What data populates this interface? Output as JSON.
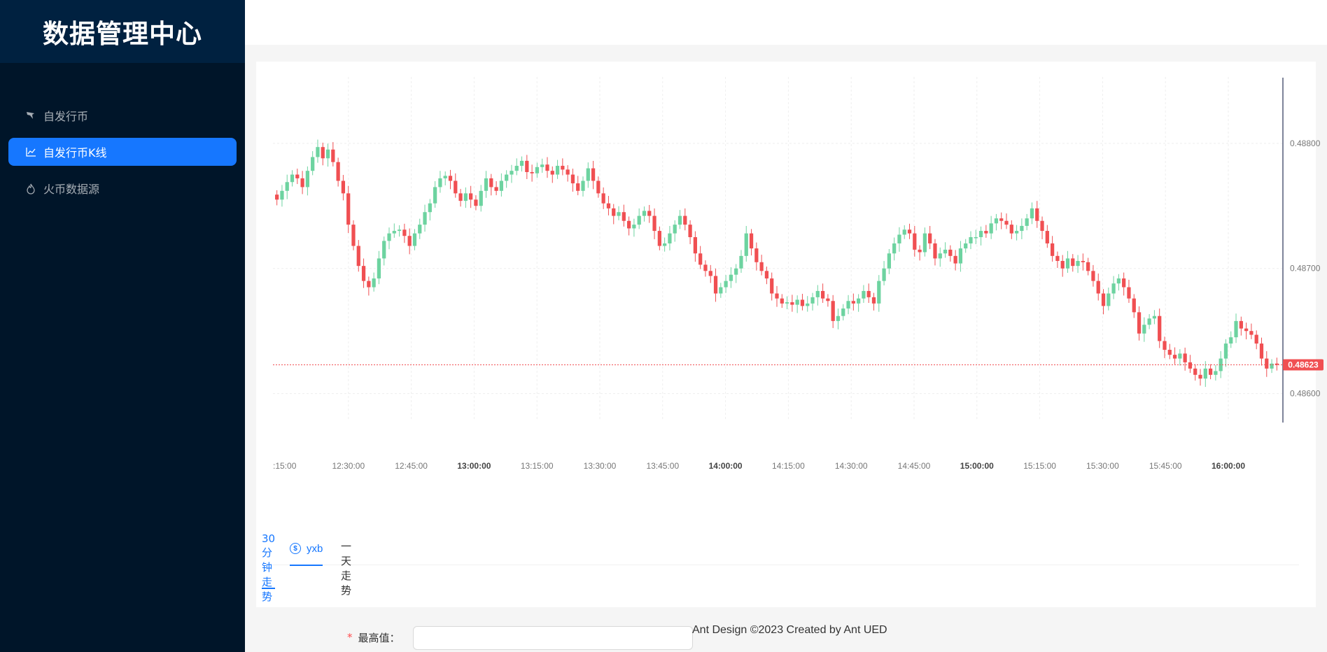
{
  "sidebar": {
    "logo": "数据管理中心",
    "items": [
      {
        "label": "自发行币",
        "icon": "bird-icon",
        "active": false
      },
      {
        "label": "自发行币K线",
        "icon": "line-chart-icon",
        "active": true
      },
      {
        "label": "火币数据源",
        "icon": "fire-icon",
        "active": false
      }
    ]
  },
  "chart_data": {
    "type": "candlestick",
    "x_ticks": [
      ":15:00",
      "12:30:00",
      "12:45:00",
      "13:00:00",
      "13:15:00",
      "13:30:00",
      "13:45:00",
      "14:00:00",
      "14:15:00",
      "14:30:00",
      "14:45:00",
      "15:00:00",
      "15:15:00",
      "15:30:00",
      "15:45:00",
      "16:00:00"
    ],
    "bold_ticks": [
      "13:00:00",
      "14:00:00",
      "15:00:00",
      "16:00:00"
    ],
    "y_ticks": [
      "0.48800",
      "0.48700",
      "0.48600"
    ],
    "y_tick_values": [
      0.488,
      0.487,
      0.486
    ],
    "ylim": [
      0.48578,
      0.48853
    ],
    "last_price_label": "0.48623",
    "last_price": 0.48623,
    "up_color": "#6dd3a0",
    "down_color": "#f04f52",
    "close_series": [
      0.48755,
      0.48762,
      0.48769,
      0.48775,
      0.48772,
      0.48765,
      0.48778,
      0.48789,
      0.48797,
      0.48788,
      0.48795,
      0.48785,
      0.4877,
      0.4876,
      0.48735,
      0.48718,
      0.48702,
      0.4869,
      0.48685,
      0.48692,
      0.48708,
      0.48722,
      0.48728,
      0.4873,
      0.48731,
      0.48726,
      0.48718,
      0.48728,
      0.48735,
      0.48745,
      0.48752,
      0.48765,
      0.48772,
      0.48774,
      0.4877,
      0.4876,
      0.48754,
      0.4876,
      0.48755,
      0.4875,
      0.48762,
      0.48772,
      0.48765,
      0.48762,
      0.4877,
      0.48775,
      0.48778,
      0.48782,
      0.48786,
      0.48777,
      0.48776,
      0.48781,
      0.48783,
      0.48778,
      0.48775,
      0.48782,
      0.48779,
      0.48775,
      0.48768,
      0.48762,
      0.4877,
      0.4878,
      0.4877,
      0.4876,
      0.48752,
      0.48748,
      0.48742,
      0.48745,
      0.48738,
      0.48732,
      0.48735,
      0.48742,
      0.48746,
      0.48742,
      0.4873,
      0.48718,
      0.4872,
      0.48728,
      0.48735,
      0.48742,
      0.48735,
      0.48725,
      0.48712,
      0.48703,
      0.48698,
      0.48694,
      0.4868,
      0.48685,
      0.4869,
      0.48695,
      0.487,
      0.4871,
      0.48728,
      0.48716,
      0.48705,
      0.48698,
      0.48692,
      0.4868,
      0.48676,
      0.48672,
      0.48673,
      0.48671,
      0.48675,
      0.4867,
      0.48672,
      0.48677,
      0.48682,
      0.48676,
      0.48674,
      0.48658,
      0.48662,
      0.48668,
      0.48674,
      0.48672,
      0.48676,
      0.48682,
      0.48677,
      0.48672,
      0.4869,
      0.487,
      0.48712,
      0.4872,
      0.48727,
      0.48731,
      0.48728,
      0.48715,
      0.48713,
      0.48728,
      0.4872,
      0.48708,
      0.48712,
      0.48715,
      0.4871,
      0.48704,
      0.48716,
      0.4872,
      0.48725,
      0.48725,
      0.4873,
      0.48728,
      0.48736,
      0.4874,
      0.48738,
      0.48735,
      0.48728,
      0.4873,
      0.48734,
      0.4874,
      0.48748,
      0.48738,
      0.4873,
      0.4872,
      0.4871,
      0.48706,
      0.487,
      0.48708,
      0.48702,
      0.48706,
      0.48705,
      0.48698,
      0.4869,
      0.4868,
      0.4867,
      0.4868,
      0.48688,
      0.48692,
      0.48685,
      0.48676,
      0.48665,
      0.48648,
      0.48655,
      0.4866,
      0.48662,
      0.48642,
      0.48635,
      0.48631,
      0.48628,
      0.48632,
      0.48625,
      0.4862,
      0.48615,
      0.48612,
      0.4862,
      0.48615,
      0.48618,
      0.48628,
      0.4864,
      0.48645,
      0.48658,
      0.48652,
      0.4865,
      0.48647,
      0.4864,
      0.48628,
      0.4862,
      0.48624,
      0.48623
    ],
    "grid": true
  },
  "tabs": {
    "coin_tab": {
      "label": "yxb",
      "icon": "dollar-circle-icon"
    },
    "range_tabs": [
      {
        "label": "30分钟走势",
        "active": true
      },
      {
        "label": "一天走势",
        "active": false
      }
    ]
  },
  "form": {
    "high_label": "最高值",
    "colon": "：",
    "required_mark": "*",
    "high_value": ""
  },
  "footer": {
    "text": "Ant Design ©2023 Created by Ant UED"
  }
}
